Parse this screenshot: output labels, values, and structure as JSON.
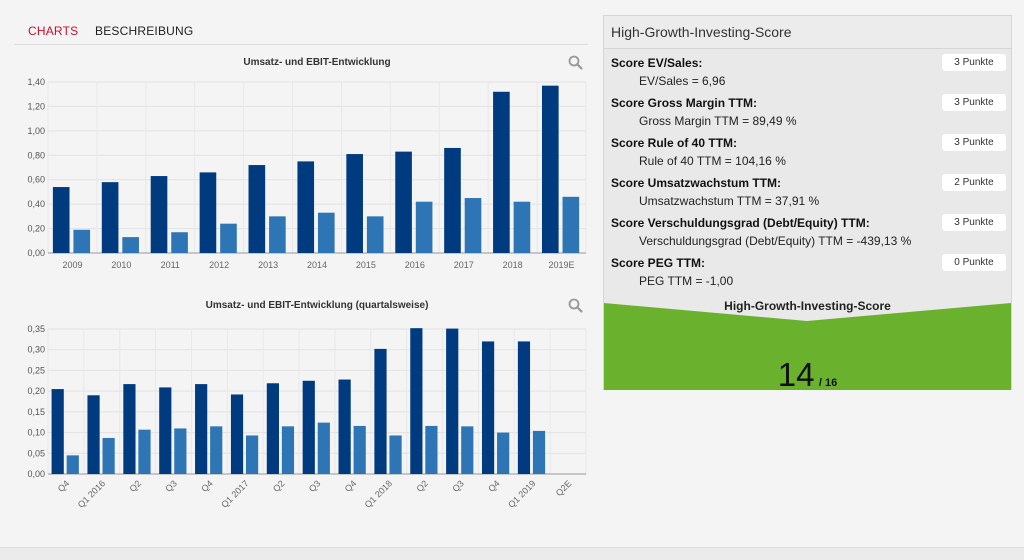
{
  "tabs": [
    {
      "label": "CHARTS",
      "active": true
    },
    {
      "label": "BESCHREIBUNG",
      "active": false
    }
  ],
  "icons": {
    "zoom": "magnifier-icon"
  },
  "colors": {
    "bar_dark": "#003b80",
    "bar_light": "#2e75b6",
    "score_green": "#6ab22e"
  },
  "chart_data": [
    {
      "type": "bar",
      "title": "Umsatz- und EBIT-Entwicklung",
      "categories": [
        "2009",
        "2010",
        "2011",
        "2012",
        "2013",
        "2014",
        "2015",
        "2016",
        "2017",
        "2018",
        "2019E"
      ],
      "series": [
        {
          "values": [
            0.54,
            0.58,
            0.63,
            0.66,
            0.72,
            0.75,
            0.81,
            0.83,
            0.86,
            1.32,
            1.37
          ]
        },
        {
          "values": [
            0.19,
            0.13,
            0.17,
            0.24,
            0.3,
            0.33,
            0.3,
            0.42,
            0.45,
            0.42,
            0.46
          ]
        }
      ],
      "ylim": [
        0,
        1.4
      ],
      "yticks": [
        "0,00",
        "0,20",
        "0,40",
        "0,60",
        "0,80",
        "1,00",
        "1,20",
        "1,40"
      ],
      "grid": true
    },
    {
      "type": "bar",
      "title": "Umsatz- und EBIT-Entwicklung (quartalsweise)",
      "categories": [
        "Q4",
        "Q1 2016",
        "Q2",
        "Q3",
        "Q4",
        "Q1 2017",
        "Q2",
        "Q3",
        "Q4",
        "Q1 2018",
        "Q2",
        "Q3",
        "Q4",
        "Q1 2019",
        "Q2E"
      ],
      "series": [
        {
          "values": [
            0.205,
            0.19,
            0.217,
            0.209,
            0.217,
            0.192,
            0.219,
            0.225,
            0.228,
            0.302,
            0.352,
            0.351,
            0.32,
            0.32,
            0
          ]
        },
        {
          "values": [
            0.045,
            0.087,
            0.107,
            0.11,
            0.115,
            0.093,
            0.115,
            0.124,
            0.116,
            0.093,
            0.116,
            0.115,
            0.1,
            0.104,
            0
          ]
        }
      ],
      "ylim": [
        0,
        0.35
      ],
      "yticks": [
        "0,00",
        "0,05",
        "0,10",
        "0,15",
        "0,20",
        "0,25",
        "0,30",
        "0,35"
      ],
      "grid": true
    }
  ],
  "panel": {
    "title": "High-Growth-Investing-Score",
    "rows": [
      {
        "label": "Score EV/Sales:",
        "value": "EV/Sales = 6,96",
        "points": "3 Punkte"
      },
      {
        "label": "Score Gross Margin TTM:",
        "value": "Gross Margin TTM = 89,49 %",
        "points": "3 Punkte"
      },
      {
        "label": "Score Rule of 40 TTM:",
        "value": "Rule of 40 TTM = 104,16 %",
        "points": "3 Punkte"
      },
      {
        "label": "Score Umsatzwachstum TTM:",
        "value": "Umsatzwachstum TTM = 37,91 %",
        "points": "2 Punkte"
      },
      {
        "label": "Score Verschuldungsgrad (Debt/Equity) TTM:",
        "value": "Verschuldungsgrad (Debt/Equity) TTM = -439,13 %",
        "points": "3 Punkte"
      },
      {
        "label": "Score PEG TTM:",
        "value": "PEG TTM = -1,00",
        "points": "0 Punkte"
      }
    ],
    "total_label": "High-Growth-Investing-Score",
    "score": "14",
    "score_max": "/ 16"
  }
}
